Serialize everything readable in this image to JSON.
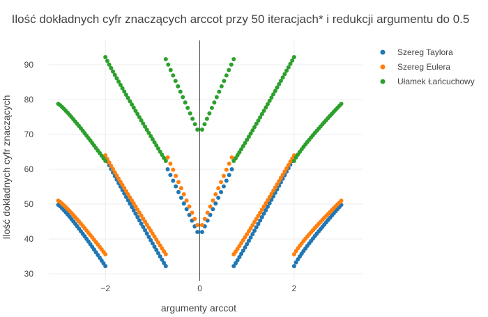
{
  "chart_data": {
    "type": "scatter",
    "title": "Ilość dokładnych cyfr znaczących arccot przy 50 iteracjach* i redukcji argumentu do 0.5",
    "xlabel": "argumenty arccot",
    "ylabel": "Ilość dokładnych cyfr znaczących",
    "xlim": [
      -3.2,
      3.45
    ],
    "ylim": [
      28,
      97
    ],
    "x_ticks": [
      -2,
      0,
      2
    ],
    "y_ticks": [
      30,
      40,
      50,
      60,
      70,
      80,
      90
    ],
    "x_tick_labels": [
      "−2",
      "0",
      "2"
    ],
    "y_tick_labels": [
      "30",
      "40",
      "50",
      "60",
      "70",
      "80",
      "90"
    ],
    "grid": true,
    "zero_line": "x=0",
    "legend_position": "top-right",
    "marker_size": 6,
    "series": [
      {
        "name": "Szereg Taylora",
        "color": "#1f77b4",
        "segments": [
          {
            "x_start": -3.0,
            "x_end": -2.0,
            "y_start": 49.8,
            "y_end": 32.2,
            "points": 26,
            "curve": 1.15
          },
          {
            "x_start": -2.0,
            "x_end": -0.72,
            "y_start": 63.4,
            "y_end": 32.2,
            "points": 33,
            "curve": 0.95
          },
          {
            "x_start": -0.68,
            "x_end": -0.05,
            "y_start": 60.0,
            "y_end": 42.0,
            "points": 12,
            "curve": 1.0
          },
          {
            "x_start": 0.05,
            "x_end": 0.68,
            "y_start": 42.0,
            "y_end": 60.0,
            "points": 12,
            "curve": 1.0
          },
          {
            "x_start": 0.72,
            "x_end": 2.0,
            "y_start": 32.2,
            "y_end": 63.4,
            "points": 33,
            "curve": 1.05
          },
          {
            "x_start": 2.0,
            "x_end": 3.0,
            "y_start": 32.2,
            "y_end": 49.8,
            "points": 26,
            "curve": 0.87
          }
        ]
      },
      {
        "name": "Szereg Eulera",
        "color": "#ff7f0e",
        "segments": [
          {
            "x_start": -3.0,
            "x_end": -2.0,
            "y_start": 51.0,
            "y_end": 35.6,
            "points": 26,
            "curve": 1.15
          },
          {
            "x_start": -2.0,
            "x_end": -0.72,
            "y_start": 64.0,
            "y_end": 35.6,
            "points": 33,
            "curve": 0.95
          },
          {
            "x_start": -0.68,
            "x_end": -0.05,
            "y_start": 63.4,
            "y_end": 44.0,
            "points": 12,
            "curve": 1.0
          },
          {
            "x_start": 0.05,
            "x_end": 0.68,
            "y_start": 44.0,
            "y_end": 63.4,
            "points": 12,
            "curve": 1.0
          },
          {
            "x_start": 0.72,
            "x_end": 2.0,
            "y_start": 35.6,
            "y_end": 64.0,
            "points": 33,
            "curve": 1.05
          },
          {
            "x_start": 2.0,
            "x_end": 3.0,
            "y_start": 35.6,
            "y_end": 51.0,
            "points": 26,
            "curve": 0.87
          }
        ]
      },
      {
        "name": "Ułamek Łańcuchowy",
        "color": "#2ca02c",
        "segments": [
          {
            "x_start": -3.0,
            "x_end": -2.0,
            "y_start": 78.8,
            "y_end": 62.4,
            "points": 26,
            "curve": 1.15
          },
          {
            "x_start": -2.0,
            "x_end": -0.72,
            "y_start": 92.2,
            "y_end": 62.4,
            "points": 33,
            "curve": 0.95
          },
          {
            "x_start": -0.72,
            "x_end": -0.05,
            "y_start": 91.6,
            "y_end": 71.4,
            "points": 14,
            "curve": 1.0
          },
          {
            "x_start": 0.05,
            "x_end": 0.72,
            "y_start": 71.4,
            "y_end": 91.6,
            "points": 14,
            "curve": 1.0
          },
          {
            "x_start": 0.72,
            "x_end": 2.0,
            "y_start": 62.4,
            "y_end": 92.2,
            "points": 33,
            "curve": 1.05
          },
          {
            "x_start": 2.0,
            "x_end": 3.0,
            "y_start": 62.4,
            "y_end": 78.8,
            "points": 26,
            "curve": 0.87
          }
        ]
      }
    ]
  }
}
